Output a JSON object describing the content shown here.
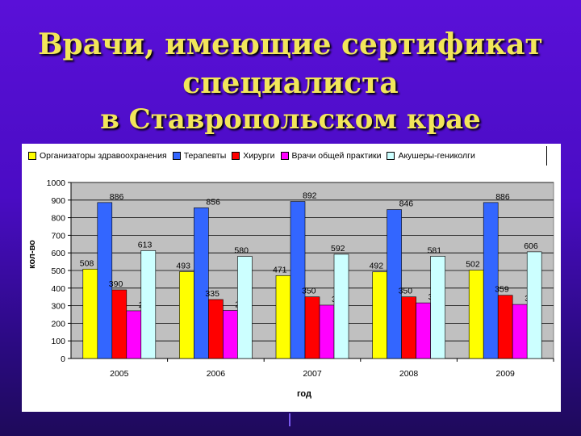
{
  "title": {
    "line1": "Врачи, имеющие сертификат",
    "line2": "специалиста",
    "line3": "в Ставропольском крае"
  },
  "chart_data": {
    "type": "bar",
    "categories": [
      "2005",
      "2006",
      "2007",
      "2008",
      "2009"
    ],
    "series": [
      {
        "name": "Организаторы здравоохранения",
        "color": "#ffff00",
        "values": [
          508,
          493,
          471,
          492,
          502
        ]
      },
      {
        "name": "Терапевты",
        "color": "#3366ff",
        "values": [
          886,
          856,
          892,
          846,
          886
        ]
      },
      {
        "name": "Хирурги",
        "color": "#ff0000",
        "values": [
          390,
          335,
          350,
          350,
          359
        ]
      },
      {
        "name": "Врачи общей практики",
        "color": "#ff00ff",
        "values": [
          271,
          273,
          303,
          316,
          307
        ]
      },
      {
        "name": "Акушеры-гениколги",
        "color": "#ccffff",
        "values": [
          613,
          580,
          592,
          581,
          606
        ]
      }
    ],
    "xlabel": "год",
    "ylabel": "кол-во",
    "ylim": [
      0,
      1000
    ],
    "yticks": [
      0,
      100,
      200,
      300,
      400,
      500,
      600,
      700,
      800,
      900,
      1000
    ],
    "grid": true,
    "legend_position": "top",
    "plot_background": "#c0c0c0"
  }
}
